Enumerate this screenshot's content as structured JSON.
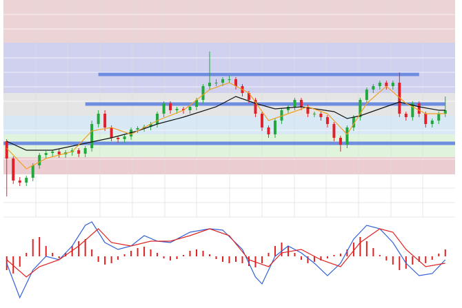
{
  "chart_data": [
    {
      "type": "candlestick",
      "xlim": [
        -0.5,
        68.5
      ],
      "ylim": [
        0,
        315
      ],
      "up_color": "#22a83c",
      "down_color": "#e0202a",
      "open": [
        110,
        85,
        53,
        50,
        57,
        75,
        90,
        93,
        95,
        91,
        94,
        97,
        92,
        100,
        135,
        150,
        130,
        115,
        113,
        117,
        127,
        129,
        131,
        135,
        150,
        165,
        155,
        157,
        155,
        160,
        170,
        190,
        195,
        195,
        200,
        200,
        190,
        180,
        170,
        150,
        130,
        120,
        140,
        155,
        160,
        170,
        160,
        150,
        150,
        145,
        135,
        115,
        105,
        130,
        145,
        170,
        185,
        190,
        195,
        190,
        195,
        150,
        145,
        165,
        150,
        135,
        140,
        150
      ],
      "high": [
        113,
        88,
        58,
        60,
        78,
        93,
        96,
        98,
        99,
        97,
        100,
        100,
        103,
        140,
        155,
        155,
        133,
        118,
        120,
        130,
        132,
        134,
        138,
        153,
        168,
        168,
        160,
        160,
        163,
        173,
        193,
        240,
        200,
        203,
        205,
        203,
        193,
        183,
        173,
        153,
        133,
        143,
        158,
        163,
        173,
        173,
        163,
        153,
        153,
        148,
        138,
        118,
        133,
        148,
        173,
        188,
        193,
        198,
        198,
        198,
        210,
        153,
        168,
        168,
        153,
        143,
        153,
        175
      ],
      "low": [
        30,
        48,
        45,
        45,
        52,
        70,
        85,
        88,
        86,
        86,
        89,
        87,
        87,
        95,
        130,
        125,
        110,
        108,
        108,
        112,
        122,
        124,
        126,
        130,
        145,
        150,
        150,
        150,
        150,
        155,
        165,
        185,
        190,
        190,
        195,
        185,
        175,
        165,
        145,
        125,
        115,
        115,
        135,
        150,
        155,
        155,
        145,
        145,
        140,
        130,
        110,
        95,
        100,
        125,
        140,
        165,
        180,
        185,
        185,
        185,
        145,
        140,
        140,
        145,
        130,
        130,
        135,
        145
      ],
      "close": [
        85,
        53,
        50,
        57,
        75,
        90,
        93,
        95,
        91,
        94,
        97,
        92,
        100,
        135,
        150,
        130,
        115,
        113,
        117,
        127,
        129,
        131,
        135,
        150,
        165,
        155,
        157,
        155,
        160,
        170,
        190,
        195,
        195,
        200,
        200,
        190,
        180,
        170,
        150,
        130,
        120,
        140,
        155,
        160,
        170,
        160,
        150,
        150,
        145,
        135,
        115,
        105,
        130,
        145,
        170,
        185,
        190,
        195,
        190,
        195,
        150,
        145,
        165,
        150,
        135,
        140,
        150,
        155
      ],
      "lines": [
        {
          "color": "#111111",
          "x": [
            0,
            3,
            7,
            11,
            16,
            20,
            23,
            27,
            32,
            35,
            38,
            41,
            45,
            50,
            52,
            54,
            57,
            60,
            63,
            66,
            67
          ],
          "values": [
            110,
            97,
            97,
            105,
            115,
            125,
            135,
            145,
            160,
            175,
            165,
            157,
            160,
            153,
            143,
            147,
            157,
            167,
            160,
            155,
            155
          ]
        },
        {
          "color": "#f0a020",
          "x": [
            0,
            3,
            6,
            10,
            13,
            16,
            19,
            23,
            27,
            31,
            34,
            37,
            40,
            43,
            46,
            49,
            52,
            55,
            58,
            61,
            64,
            67
          ],
          "values": [
            100,
            70,
            85,
            95,
            125,
            130,
            120,
            140,
            155,
            185,
            195,
            180,
            140,
            150,
            160,
            150,
            120,
            165,
            190,
            165,
            150,
            150
          ]
        }
      ],
      "levels": [
        {
          "value": 207,
          "x": [
            14,
            63
          ]
        },
        {
          "value": 164,
          "x": [
            12,
            67
          ]
        },
        {
          "value": 107,
          "x": [
            -0.5,
            68.5
          ]
        }
      ],
      "level_color": "#6f8de0"
    },
    {
      "type": "macd",
      "xlim": [
        -0.5,
        68.5
      ],
      "ylim": [
        -70,
        52
      ],
      "hist_color": "#e02020",
      "histogram": [
        -20,
        -25,
        -15,
        5,
        25,
        28,
        15,
        5,
        -3,
        5,
        15,
        22,
        25,
        10,
        -8,
        -12,
        -10,
        -5,
        3,
        8,
        12,
        14,
        10,
        5,
        -3,
        -6,
        -4,
        2,
        8,
        10,
        8,
        3,
        -4,
        -8,
        -10,
        -8,
        -10,
        -14,
        -16,
        -10,
        5,
        15,
        20,
        15,
        5,
        -5,
        -10,
        -8,
        -6,
        -3,
        2,
        4,
        10,
        20,
        28,
        22,
        12,
        2,
        -6,
        -12,
        -20,
        -18,
        -12,
        -8,
        -10,
        -5,
        4,
        10
      ],
      "lines": [
        {
          "color": "#3060d8",
          "x": [
            0,
            2,
            4,
            6,
            8,
            10,
            12,
            13,
            15,
            17,
            19,
            21,
            23,
            25,
            28,
            31,
            33,
            36,
            38,
            39,
            41,
            43,
            45,
            47,
            49,
            51,
            53,
            55,
            57,
            59,
            61,
            63,
            65,
            67
          ],
          "values": [
            -10,
            -60,
            -20,
            0,
            -5,
            15,
            45,
            50,
            20,
            10,
            15,
            30,
            22,
            20,
            35,
            40,
            38,
            10,
            -30,
            -40,
            0,
            15,
            5,
            -10,
            -28,
            -10,
            25,
            45,
            40,
            20,
            -10,
            -28,
            -25,
            -5
          ]
        },
        {
          "color": "#e02020",
          "x": [
            0,
            3,
            5,
            8,
            11,
            14,
            16,
            19,
            22,
            25,
            28,
            31,
            34,
            37,
            40,
            42,
            45,
            48,
            51,
            54,
            57,
            59,
            61,
            64,
            67
          ],
          "values": [
            -5,
            -30,
            -15,
            -5,
            15,
            40,
            20,
            15,
            22,
            22,
            30,
            40,
            30,
            -5,
            -15,
            5,
            10,
            -5,
            -15,
            20,
            40,
            35,
            10,
            -15,
            -10
          ]
        }
      ]
    }
  ]
}
